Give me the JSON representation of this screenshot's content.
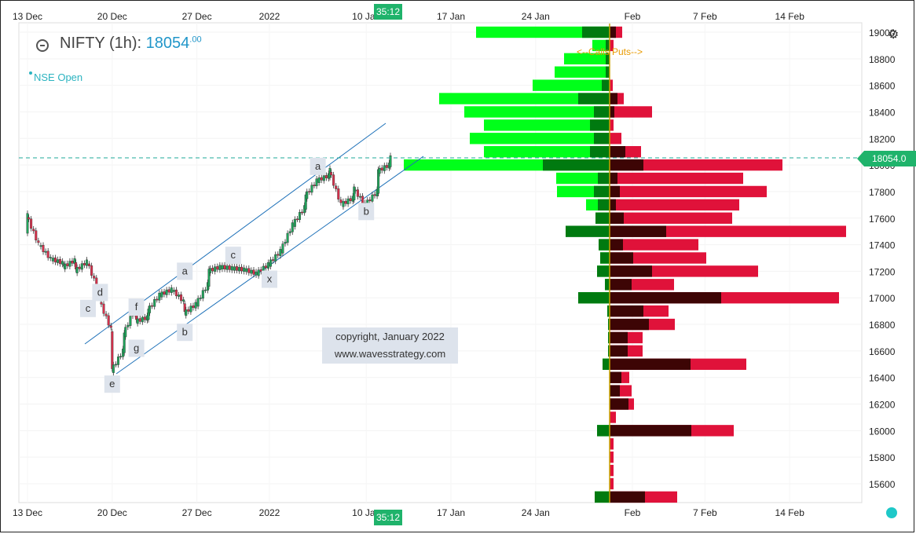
{
  "header": {
    "symbol_label": "NIFTY (1h):",
    "last_price": "18054",
    "last_price_decimals": ".00",
    "session_label": "NSE Open"
  },
  "watermark": {
    "line1": "copyright, January 2022",
    "line2": "www.wavesstrategy.com"
  },
  "time_tag": "35:12",
  "price_tag": "18054.0",
  "legend_calls_puts": "<--Calls  Puts-->",
  "x_axis_labels": [
    "13 Dec",
    "20 Dec",
    "27 Dec",
    "2022",
    "10 Jan",
    "17 Jan",
    "24 Jan",
    "Feb",
    "7 Feb",
    "14 Feb"
  ],
  "y_axis_labels": [
    "19000",
    "18800",
    "18600",
    "18400",
    "18200",
    "18000",
    "17800",
    "17600",
    "17400",
    "17200",
    "17000",
    "16800",
    "16600",
    "16400",
    "16200",
    "16000",
    "15800",
    "15600"
  ],
  "wave_labels": [
    {
      "text": "d",
      "date": "2021-12-19",
      "price": 17040
    },
    {
      "text": "c",
      "date": "2021-12-18",
      "price": 16920
    },
    {
      "text": "f",
      "date": "2021-12-22",
      "price": 16930
    },
    {
      "text": "g",
      "date": "2021-12-22",
      "price": 16620
    },
    {
      "text": "e",
      "date": "2021-12-20",
      "price": 16350
    },
    {
      "text": "a",
      "date": "2021-12-26",
      "price": 17200
    },
    {
      "text": "b",
      "date": "2021-12-26",
      "price": 16740
    },
    {
      "text": "c",
      "date": "2021-12-30",
      "price": 17320
    },
    {
      "text": "x",
      "date": "2022-01-02",
      "price": 17140
    },
    {
      "text": "a",
      "date": "2022-01-06",
      "price": 17990
    },
    {
      "text": "b",
      "date": "2022-01-10",
      "price": 17650
    }
  ],
  "colors": {
    "call_oi": "#00ff1a",
    "call_change": "#007a10",
    "put_oi": "#e0123a",
    "put_change": "#3d0505",
    "channel": "#1c70b8",
    "price_line": "#1fa99a"
  },
  "chart_data": [
    {
      "type": "candlestick",
      "title": "NIFTY (1h)",
      "last_price": 18054.0,
      "ylim": [
        15500,
        19100
      ],
      "xlim": [
        "2021-12-13",
        "2022-02-20"
      ],
      "grid": true,
      "close_path": [
        [
          "2021-12-13",
          17500
        ],
        [
          "2021-12-13",
          17620
        ],
        [
          "2021-12-14",
          17400
        ],
        [
          "2021-12-15",
          17290
        ],
        [
          "2021-12-16",
          17260
        ],
        [
          "2021-12-16",
          17230
        ],
        [
          "2021-12-17",
          17280
        ],
        [
          "2021-12-17",
          17200
        ],
        [
          "2021-12-18",
          17270
        ],
        [
          "2021-12-19",
          17040
        ],
        [
          "2021-12-19",
          16980
        ],
        [
          "2021-12-20",
          16760
        ],
        [
          "2021-12-20",
          16450
        ],
        [
          "2021-12-21",
          16600
        ],
        [
          "2021-12-21",
          16720
        ],
        [
          "2021-12-22",
          16930
        ],
        [
          "2021-12-22",
          16820
        ],
        [
          "2021-12-23",
          16850
        ],
        [
          "2021-12-23",
          16900
        ],
        [
          "2021-12-24",
          17020
        ],
        [
          "2021-12-25",
          17060
        ],
        [
          "2021-12-26",
          16970
        ],
        [
          "2021-12-26",
          16880
        ],
        [
          "2021-12-27",
          16950
        ],
        [
          "2021-12-28",
          17100
        ],
        [
          "2021-12-28",
          17200
        ],
        [
          "2021-12-29",
          17230
        ],
        [
          "2021-12-30",
          17220
        ],
        [
          "2021-12-31",
          17210
        ],
        [
          "2022-01-01",
          17180
        ],
        [
          "2022-01-02",
          17250
        ],
        [
          "2022-01-03",
          17350
        ],
        [
          "2022-01-04",
          17550
        ],
        [
          "2022-01-05",
          17680
        ],
        [
          "2022-01-05",
          17760
        ],
        [
          "2022-01-06",
          17880
        ],
        [
          "2022-01-07",
          17920
        ],
        [
          "2022-01-07",
          17960
        ],
        [
          "2022-01-08",
          17700
        ],
        [
          "2022-01-09",
          17750
        ],
        [
          "2022-01-09",
          17820
        ],
        [
          "2022-01-10",
          17700
        ],
        [
          "2022-01-11",
          17800
        ],
        [
          "2022-01-11",
          17950
        ],
        [
          "2022-01-12",
          18000
        ],
        [
          "2022-01-12",
          18054
        ]
      ]
    },
    {
      "type": "bar",
      "orientation": "horizontal",
      "title": "Option open interest by strike",
      "categories": [
        19000,
        18900,
        18800,
        18700,
        18600,
        18500,
        18400,
        18300,
        18200,
        18100,
        18000,
        17900,
        17800,
        17700,
        17600,
        17500,
        17400,
        17300,
        17200,
        17100,
        17000,
        16900,
        16800,
        16700,
        16600,
        16500,
        16400,
        16300,
        16200,
        16100,
        16000,
        15900,
        15800,
        15700,
        15600,
        15500
      ],
      "series": [
        {
          "name": "Calls",
          "values": [
            170,
            22,
            58,
            70,
            98,
            217,
            185,
            160,
            178,
            160,
            262,
            68,
            67,
            30,
            18,
            0,
            14,
            12,
            16,
            6,
            40,
            3,
            2,
            2,
            2,
            9,
            0,
            0,
            0,
            0,
            16,
            0,
            0,
            0,
            0,
            19
          ]
        },
        {
          "name": "Calls change",
          "values": [
            35,
            5,
            5,
            5,
            10,
            40,
            20,
            25,
            20,
            25,
            85,
            15,
            20,
            15,
            18,
            56,
            14,
            12,
            16,
            6,
            40,
            3,
            2,
            2,
            2,
            9,
            0,
            0,
            0,
            0,
            16,
            0,
            0,
            0,
            0,
            19
          ]
        },
        {
          "name": "Puts",
          "values": [
            16,
            5,
            0,
            0,
            4,
            18,
            54,
            5,
            15,
            40,
            220,
            170,
            200,
            165,
            156,
            301,
            113,
            123,
            189,
            82,
            292,
            75,
            83,
            42,
            42,
            174,
            25,
            28,
            31,
            8,
            158,
            5,
            5,
            5,
            5,
            86
          ]
        },
        {
          "name": "Puts change",
          "values": [
            8,
            0,
            0,
            0,
            0,
            10,
            6,
            0,
            0,
            20,
            43,
            10,
            13,
            8,
            18,
            72,
            17,
            30,
            54,
            28,
            142,
            43,
            50,
            23,
            23,
            103,
            15,
            13,
            24,
            0,
            104,
            0,
            0,
            0,
            0,
            45
          ]
        }
      ]
    }
  ]
}
